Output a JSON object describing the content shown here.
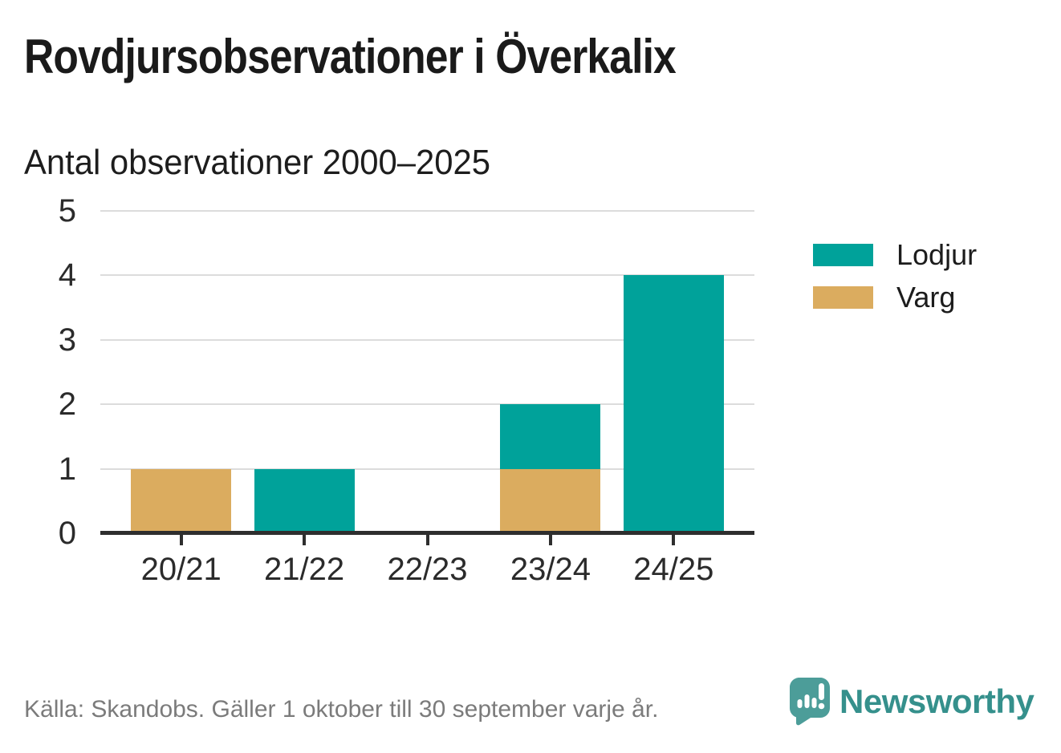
{
  "chart_data": {
    "type": "bar",
    "stacked": true,
    "title": "Rovdjursobservationer i Överkalix",
    "subtitle": "Antal observationer 2000–2025",
    "categories": [
      "20/21",
      "21/22",
      "22/23",
      "23/24",
      "24/25"
    ],
    "series": [
      {
        "name": "Lodjur",
        "color": "#00A29A",
        "values": [
          0,
          1,
          0,
          1,
          4
        ]
      },
      {
        "name": "Varg",
        "color": "#DBAC5F",
        "values": [
          1,
          0,
          0,
          1,
          0
        ]
      }
    ],
    "stack_order_bottom_to_top": [
      "Varg",
      "Lodjur"
    ],
    "yticks": [
      0,
      1,
      2,
      3,
      4,
      5
    ],
    "ylim": [
      0,
      5
    ],
    "xlabel": "",
    "ylabel": "",
    "grid": true,
    "legend_position": "right"
  },
  "footer": {
    "source": "Källa: Skandobs. Gäller 1 oktober till 30 september varje år.",
    "brand": "Newsworthy",
    "brand_color": "#35908C",
    "logo_color": "#4C9D99"
  }
}
